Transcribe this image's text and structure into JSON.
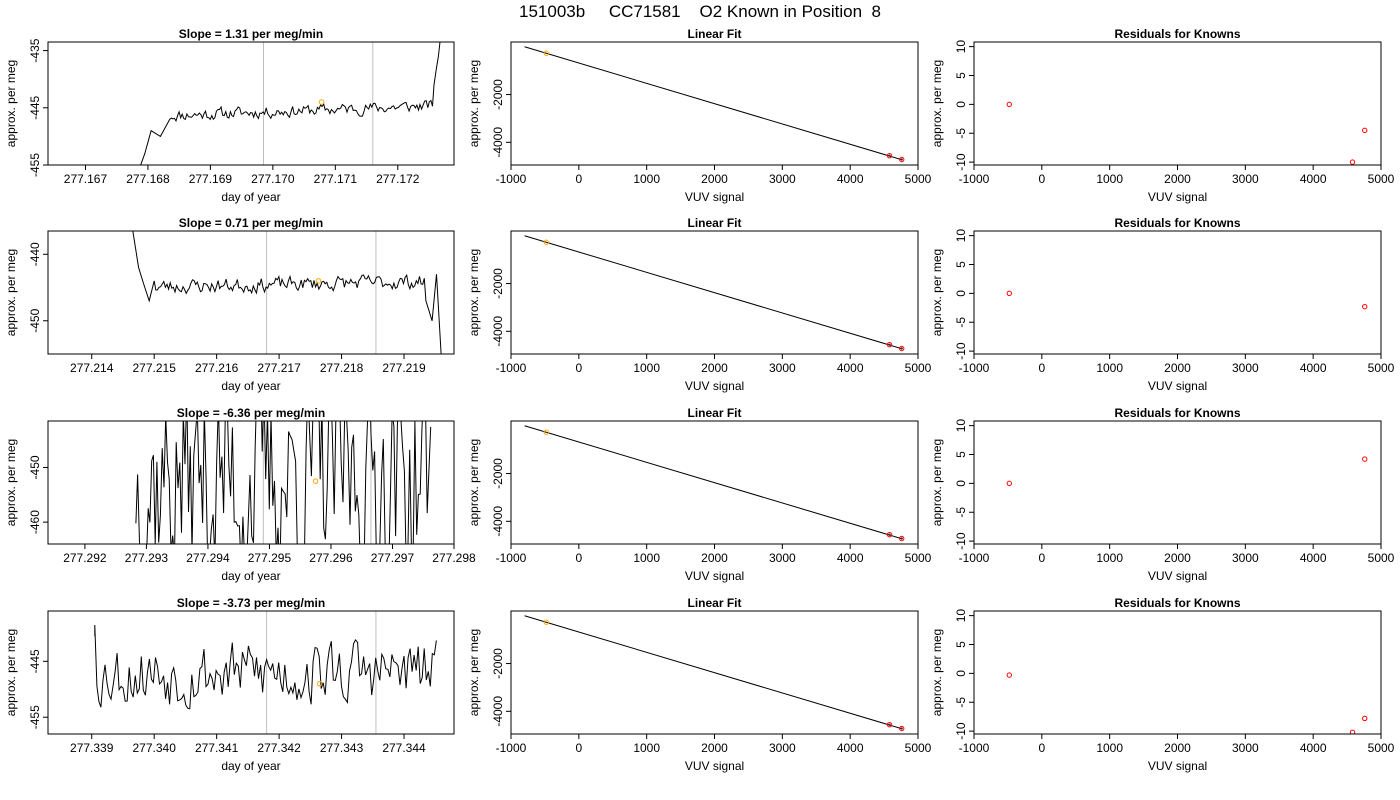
{
  "title": "151003b     CC71581    O2 Known in Position  8",
  "colors": {
    "trace": "#000000",
    "vline": "#bebebe",
    "orange": "#ffa500",
    "red": "#ff0000",
    "fit": "#000000"
  },
  "chart_data": [
    {
      "type": "line",
      "title": "Slope =  1.31  per meg/min",
      "xlabel": "day of year",
      "ylabel": "approx. per meg",
      "xlim": [
        277.1664,
        277.1729
      ],
      "ylim": [
        -455,
        -433.5
      ],
      "xticks": [
        277.167,
        277.168,
        277.169,
        277.17,
        277.171,
        277.172
      ],
      "xtick_labels": [
        "277.167",
        "277.168",
        "277.169",
        "277.170",
        "277.171",
        "277.172"
      ],
      "yticks": [
        -455,
        -445,
        -435
      ],
      "ytick_labels": [
        "-455",
        "-445",
        "-435"
      ],
      "vlines": [
        277.16985,
        277.1716
      ],
      "marker": {
        "x": 277.17078,
        "y": -444.0
      },
      "trace": {
        "x_start": 277.16785,
        "x_end": 277.17268,
        "level": -445.5,
        "trend": 1.7,
        "noise": 1.6,
        "seed": 11,
        "head": [
          [
            277.16785,
            -456
          ],
          [
            277.16795,
            -453
          ],
          [
            277.16805,
            -449
          ],
          [
            277.1682,
            -450
          ],
          [
            277.16835,
            -447
          ]
        ],
        "tail": [
          [
            277.17258,
            -441
          ],
          [
            277.17262,
            -438
          ],
          [
            277.17265,
            -436
          ],
          [
            277.17268,
            -433
          ]
        ]
      }
    },
    {
      "type": "line",
      "title": "Slope =  0.71  per meg/min",
      "xlabel": "day of year",
      "ylabel": "approx. per meg",
      "xlim": [
        277.2133,
        277.2198
      ],
      "ylim": [
        -455,
        -436.5
      ],
      "xticks": [
        277.214,
        277.215,
        277.216,
        277.217,
        277.218,
        277.219
      ],
      "xtick_labels": [
        "277.214",
        "277.215",
        "277.216",
        "277.217",
        "277.218",
        "277.219"
      ],
      "yticks": [
        -450,
        -440
      ],
      "ytick_labels": [
        "-450",
        "-440"
      ],
      "vlines": [
        277.2168,
        277.21855
      ],
      "marker": {
        "x": 277.21763,
        "y": -444.0
      },
      "trace": {
        "x_start": 277.21465,
        "x_end": 277.2196,
        "level": -444.5,
        "trend": 0.8,
        "noise": 1.7,
        "seed": 23,
        "head": [
          [
            277.21465,
            -436
          ],
          [
            277.21475,
            -442
          ],
          [
            277.21485,
            -445
          ],
          [
            277.21492,
            -447
          ],
          [
            277.215,
            -444
          ]
        ],
        "tail": [
          [
            277.21935,
            -447
          ],
          [
            277.21945,
            -450
          ],
          [
            277.21952,
            -443
          ],
          [
            277.2196,
            -456
          ]
        ]
      }
    },
    {
      "type": "line",
      "title": "Slope =  -6.36  per meg/min",
      "xlabel": "day of year",
      "ylabel": "approx. per meg",
      "xlim": [
        277.2914,
        277.298
      ],
      "ylim": [
        -464,
        -441.5
      ],
      "xticks": [
        277.292,
        277.293,
        277.294,
        277.295,
        277.296,
        277.297,
        277.298
      ],
      "xtick_labels": [
        "277.292",
        "277.293",
        "277.294",
        "277.295",
        "277.296",
        "277.297",
        "277.298"
      ],
      "yticks": [
        -460,
        -450
      ],
      "ytick_labels": [
        "-460",
        "-450"
      ],
      "vlines": [
        277.2949,
        277.29665
      ],
      "marker": {
        "x": 277.29575,
        "y": -452.5
      },
      "trace": {
        "x_start": 277.2928,
        "x_end": 277.29765,
        "level": -452,
        "trend": 0,
        "noise": 30,
        "seed": 37,
        "head": [],
        "tail": []
      }
    },
    {
      "type": "line",
      "title": "Slope =  -3.73  per meg/min",
      "xlabel": "day of year",
      "ylabel": "approx. per meg",
      "xlim": [
        277.3383,
        277.3448
      ],
      "ylim": [
        -458,
        -436
      ],
      "xticks": [
        277.339,
        277.34,
        277.341,
        277.342,
        277.343,
        277.344
      ],
      "xtick_labels": [
        "277.339",
        "277.340",
        "277.341",
        "277.342",
        "277.343",
        "277.344"
      ],
      "yticks": [
        -455,
        -445
      ],
      "ytick_labels": [
        "-455",
        "-445"
      ],
      "vlines": [
        277.3418,
        277.34355
      ],
      "marker": {
        "x": 277.34265,
        "y": -449.0
      },
      "trace": {
        "x_start": 277.33965,
        "x_end": 277.34455,
        "level": -447,
        "trend": 0,
        "noise": 9,
        "seed": 53,
        "head": [
          [
            277.33905,
            -440.5
          ],
          [
            277.33905,
            -438.5
          ]
        ],
        "tail": []
      }
    },
    {
      "type": "scatter",
      "title": "Linear Fit",
      "xlabel": "VUV signal",
      "ylabel": "approx. per meg",
      "xlim": [
        -1000,
        5000
      ],
      "ylim": [
        -4950,
        200
      ],
      "xticks": [
        -1000,
        0,
        1000,
        2000,
        3000,
        4000,
        5000
      ],
      "xtick_labels": [
        "-1000",
        "0",
        "1000",
        "2000",
        "3000",
        "4000",
        "5000"
      ],
      "yticks": [
        -4000,
        -2000
      ],
      "ytick_labels": [
        "-4000",
        "-2000"
      ],
      "fit_line": [
        [
          -800,
          0
        ],
        [
          4750,
          -4720
        ]
      ],
      "points": [
        {
          "x": -480,
          "y": -270,
          "color": "orange"
        },
        {
          "x": 4580,
          "y": -4560,
          "color": "red"
        },
        {
          "x": 4760,
          "y": -4720,
          "color": "red"
        }
      ]
    },
    {
      "type": "scatter",
      "title": "Linear Fit",
      "xlabel": "VUV signal",
      "ylabel": "approx. per meg",
      "xlim": [
        -1000,
        5000
      ],
      "ylim": [
        -4950,
        200
      ],
      "xticks": [
        -1000,
        0,
        1000,
        2000,
        3000,
        4000,
        5000
      ],
      "xtick_labels": [
        "-1000",
        "0",
        "1000",
        "2000",
        "3000",
        "4000",
        "5000"
      ],
      "yticks": [
        -4000,
        -2000
      ],
      "ytick_labels": [
        "-4000",
        "-2000"
      ],
      "fit_line": [
        [
          -800,
          0
        ],
        [
          4750,
          -4720
        ]
      ],
      "points": [
        {
          "x": -480,
          "y": -270,
          "color": "orange"
        },
        {
          "x": 4580,
          "y": -4560,
          "color": "red"
        },
        {
          "x": 4760,
          "y": -4720,
          "color": "red"
        }
      ]
    },
    {
      "type": "scatter",
      "title": "Linear Fit",
      "xlabel": "VUV signal",
      "ylabel": "approx. per meg",
      "xlim": [
        -1000,
        5000
      ],
      "ylim": [
        -4950,
        200
      ],
      "xticks": [
        -1000,
        0,
        1000,
        2000,
        3000,
        4000,
        5000
      ],
      "xtick_labels": [
        "-1000",
        "0",
        "1000",
        "2000",
        "3000",
        "4000",
        "5000"
      ],
      "yticks": [
        -4000,
        -2000
      ],
      "ytick_labels": [
        "-4000",
        "-2000"
      ],
      "fit_line": [
        [
          -800,
          0
        ],
        [
          4750,
          -4720
        ]
      ],
      "points": [
        {
          "x": -480,
          "y": -270,
          "color": "orange"
        },
        {
          "x": 4580,
          "y": -4560,
          "color": "red"
        },
        {
          "x": 4760,
          "y": -4720,
          "color": "red"
        }
      ]
    },
    {
      "type": "scatter",
      "title": "Linear Fit",
      "xlabel": "VUV signal",
      "ylabel": "approx. per meg",
      "xlim": [
        -1000,
        5000
      ],
      "ylim": [
        -4950,
        200
      ],
      "xticks": [
        -1000,
        0,
        1000,
        2000,
        3000,
        4000,
        5000
      ],
      "xtick_labels": [
        "-1000",
        "0",
        "1000",
        "2000",
        "3000",
        "4000",
        "5000"
      ],
      "yticks": [
        -4000,
        -2000
      ],
      "ytick_labels": [
        "-4000",
        "-2000"
      ],
      "fit_line": [
        [
          -800,
          0
        ],
        [
          4750,
          -4720
        ]
      ],
      "points": [
        {
          "x": -480,
          "y": -270,
          "color": "orange"
        },
        {
          "x": 4580,
          "y": -4560,
          "color": "red"
        },
        {
          "x": 4760,
          "y": -4720,
          "color": "red"
        }
      ]
    },
    {
      "type": "scatter",
      "title": "Residuals for Knowns",
      "xlabel": "VUV signal",
      "ylabel": "approx. per meg",
      "xlim": [
        -1000,
        5000
      ],
      "ylim": [
        -10.5,
        10.8
      ],
      "xticks": [
        -1000,
        0,
        1000,
        2000,
        3000,
        4000,
        5000
      ],
      "xtick_labels": [
        "-1000",
        "0",
        "1000",
        "2000",
        "3000",
        "4000",
        "5000"
      ],
      "yticks": [
        -10,
        -5,
        0,
        5,
        10
      ],
      "ytick_labels": [
        "-10",
        "-5",
        "0",
        "5",
        "10"
      ],
      "points": [
        {
          "x": -480,
          "y": 0.0
        },
        {
          "x": 4580,
          "y": -10.0
        },
        {
          "x": 4760,
          "y": -4.5
        }
      ]
    },
    {
      "type": "scatter",
      "title": "Residuals for Knowns",
      "xlabel": "VUV signal",
      "ylabel": "approx. per meg",
      "xlim": [
        -1000,
        5000
      ],
      "ylim": [
        -10.5,
        10.8
      ],
      "xticks": [
        -1000,
        0,
        1000,
        2000,
        3000,
        4000,
        5000
      ],
      "xtick_labels": [
        "-1000",
        "0",
        "1000",
        "2000",
        "3000",
        "4000",
        "5000"
      ],
      "yticks": [
        -10,
        -5,
        0,
        5,
        10
      ],
      "ytick_labels": [
        "-10",
        "-5",
        "0",
        "5",
        "10"
      ],
      "points": [
        {
          "x": -480,
          "y": 0.0
        },
        {
          "x": 4760,
          "y": -2.3
        }
      ]
    },
    {
      "type": "scatter",
      "title": "Residuals for Knowns",
      "xlabel": "VUV signal",
      "ylabel": "approx. per meg",
      "xlim": [
        -1000,
        5000
      ],
      "ylim": [
        -10.5,
        10.8
      ],
      "xticks": [
        -1000,
        0,
        1000,
        2000,
        3000,
        4000,
        5000
      ],
      "xtick_labels": [
        "-1000",
        "0",
        "1000",
        "2000",
        "3000",
        "4000",
        "5000"
      ],
      "yticks": [
        -10,
        -5,
        0,
        5,
        10
      ],
      "ytick_labels": [
        "-10",
        "-5",
        "0",
        "5",
        "10"
      ],
      "points": [
        {
          "x": -480,
          "y": 0.0
        },
        {
          "x": 4760,
          "y": 4.2
        }
      ]
    },
    {
      "type": "scatter",
      "title": "Residuals for Knowns",
      "xlabel": "VUV signal",
      "ylabel": "approx. per meg",
      "xlim": [
        -1000,
        5000
      ],
      "ylim": [
        -10.5,
        10.8
      ],
      "xticks": [
        -1000,
        0,
        1000,
        2000,
        3000,
        4000,
        5000
      ],
      "xtick_labels": [
        "-1000",
        "0",
        "1000",
        "2000",
        "3000",
        "4000",
        "5000"
      ],
      "yticks": [
        -10,
        -5,
        0,
        5,
        10
      ],
      "ytick_labels": [
        "-10",
        "-5",
        "0",
        "5",
        "10"
      ],
      "points": [
        {
          "x": -480,
          "y": -0.3
        },
        {
          "x": 4580,
          "y": -10.2
        },
        {
          "x": 4760,
          "y": -7.8
        }
      ]
    }
  ]
}
